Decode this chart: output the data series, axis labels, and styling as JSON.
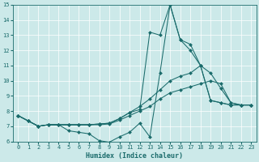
{
  "xlabel": "Humidex (Indice chaleur)",
  "xlim": [
    -0.5,
    23.5
  ],
  "ylim": [
    6,
    15
  ],
  "xticks": [
    0,
    1,
    2,
    3,
    4,
    5,
    6,
    7,
    8,
    9,
    10,
    11,
    12,
    13,
    14,
    15,
    16,
    17,
    18,
    19,
    20,
    21,
    22,
    23
  ],
  "yticks": [
    6,
    7,
    8,
    9,
    10,
    11,
    12,
    13,
    14,
    15
  ],
  "bg_color": "#cce9e9",
  "line_color": "#1a6b6b",
  "grid_color": "#b8d8d8",
  "series": [
    {
      "x": [
        0,
        1,
        2,
        3,
        4,
        5,
        6,
        7,
        8,
        9,
        10,
        11,
        12,
        13,
        14,
        15,
        16,
        17,
        18,
        19,
        20,
        21,
        22,
        23
      ],
      "y": [
        7.7,
        7.35,
        7.0,
        7.1,
        7.1,
        6.7,
        6.6,
        6.5,
        6.05,
        5.95,
        6.3,
        6.6,
        7.2,
        6.3,
        10.5,
        15.0,
        12.7,
        12.4,
        11.0,
        8.7,
        8.55,
        8.4,
        8.4,
        8.4
      ]
    },
    {
      "x": [
        0,
        1,
        2,
        3,
        4,
        5,
        6,
        7,
        8,
        9,
        10,
        11,
        12,
        13,
        14,
        15,
        16,
        17,
        18,
        19,
        20,
        21,
        22,
        23
      ],
      "y": [
        7.7,
        7.35,
        7.0,
        7.1,
        7.1,
        7.1,
        7.1,
        7.1,
        7.1,
        7.15,
        7.4,
        7.7,
        8.0,
        8.3,
        8.8,
        9.2,
        9.4,
        9.6,
        9.8,
        10.0,
        9.8,
        8.55,
        8.4,
        8.4
      ]
    },
    {
      "x": [
        0,
        1,
        2,
        3,
        4,
        5,
        6,
        7,
        8,
        9,
        10,
        11,
        12,
        13,
        14,
        15,
        16,
        17,
        18,
        19,
        20,
        21,
        22,
        23
      ],
      "y": [
        7.7,
        7.35,
        7.0,
        7.1,
        7.1,
        7.1,
        7.1,
        7.1,
        7.15,
        7.2,
        7.5,
        7.9,
        8.3,
        8.8,
        9.4,
        10.0,
        10.3,
        10.5,
        11.0,
        10.5,
        9.5,
        8.55,
        8.4,
        8.4
      ]
    },
    {
      "x": [
        0,
        1,
        2,
        3,
        4,
        5,
        6,
        7,
        8,
        9,
        10,
        11,
        12,
        13,
        14,
        15,
        16,
        17,
        18,
        19,
        20,
        21,
        22,
        23
      ],
      "y": [
        7.7,
        7.35,
        7.0,
        7.1,
        7.1,
        7.1,
        7.1,
        7.1,
        7.15,
        7.2,
        7.5,
        7.9,
        8.1,
        13.2,
        13.0,
        15.0,
        12.7,
        12.0,
        11.0,
        8.7,
        8.55,
        8.4,
        8.4,
        8.4
      ]
    }
  ]
}
